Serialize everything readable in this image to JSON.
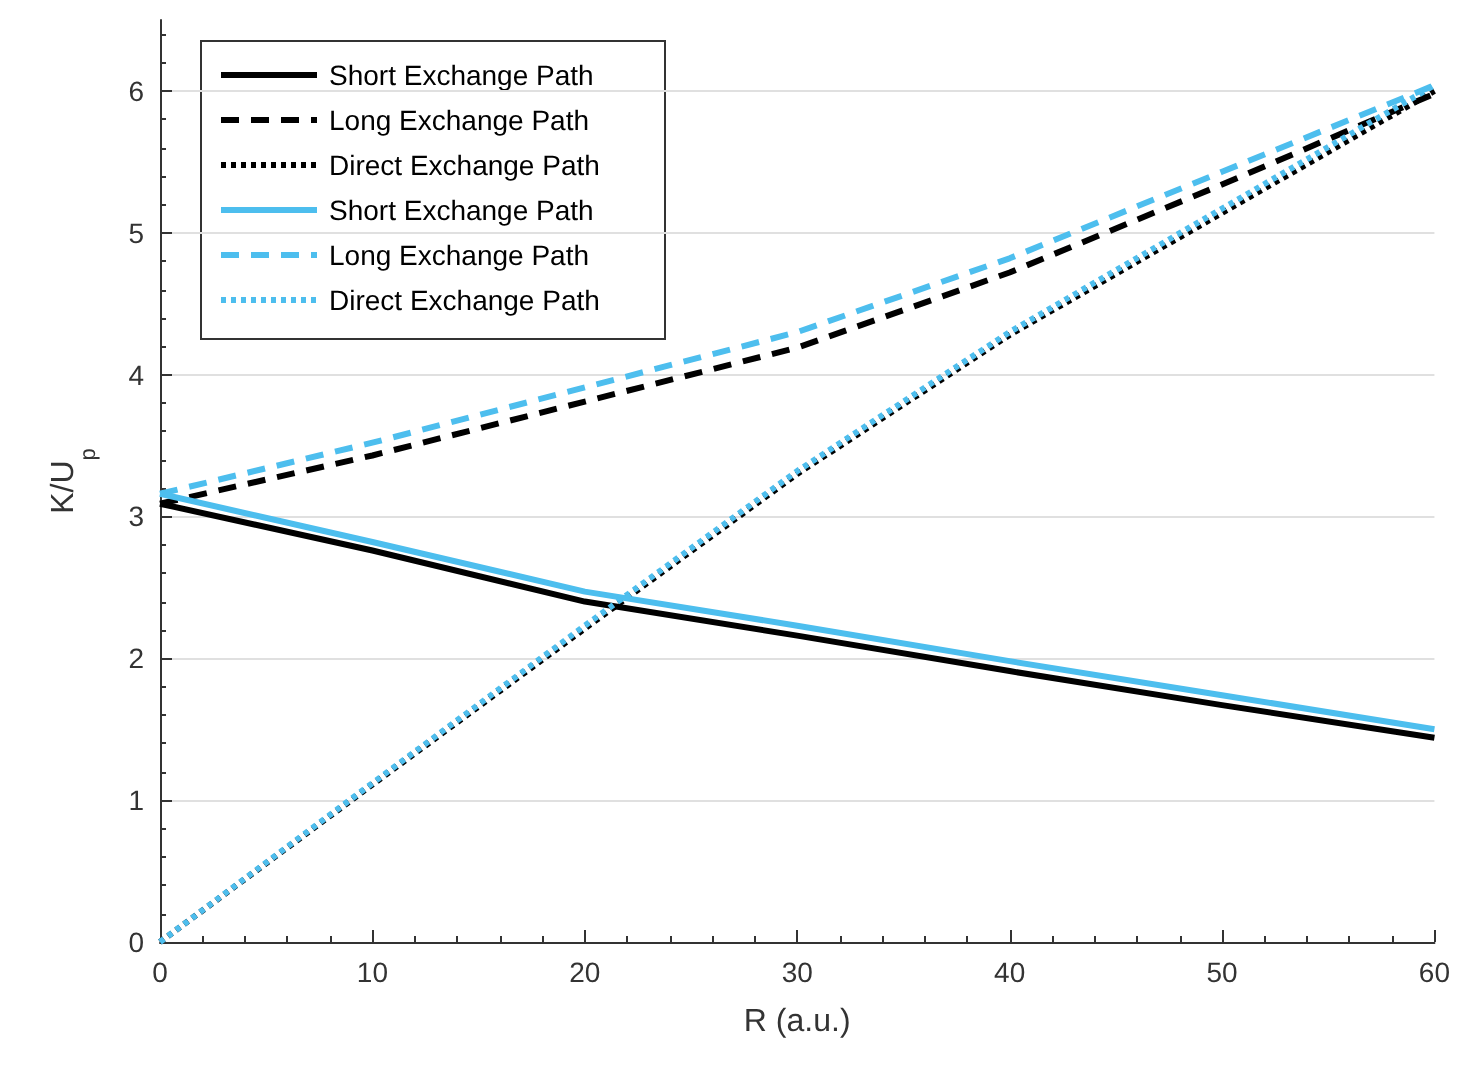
{
  "chart_data": {
    "type": "line",
    "xlabel": "R (a.u.)",
    "ylabel": "K/U$_{p}$",
    "x": [
      0,
      10,
      20,
      30,
      40,
      50,
      60
    ],
    "series": [
      {
        "name": "Short Exchange Path",
        "color": "#000000",
        "line_style": "solid",
        "values": [
          3.09,
          2.76,
          2.4,
          2.16,
          1.91,
          1.67,
          1.44
        ]
      },
      {
        "name": "Long Exchange Path",
        "color": "#000000",
        "line_style": "dashed",
        "values": [
          3.09,
          3.43,
          3.81,
          4.19,
          4.72,
          5.34,
          5.98
        ]
      },
      {
        "name": "Direct Exchange Path",
        "color": "#000000",
        "line_style": "dotted",
        "values": [
          0,
          1.11,
          2.21,
          3.3,
          4.28,
          5.14,
          6.0
        ]
      },
      {
        "name": "Short Exchange Path",
        "color": "#4dbeee",
        "line_style": "solid",
        "values": [
          3.16,
          2.82,
          2.47,
          2.23,
          1.98,
          1.74,
          1.5
        ]
      },
      {
        "name": "Long Exchange Path",
        "color": "#4dbeee",
        "line_style": "dashed",
        "values": [
          3.16,
          3.52,
          3.91,
          4.3,
          4.82,
          5.43,
          6.04
        ]
      },
      {
        "name": "Direct Exchange Path",
        "color": "#4dbeee",
        "line_style": "dotted",
        "values": [
          0,
          1.12,
          2.23,
          3.32,
          4.3,
          5.17,
          6.04
        ]
      }
    ],
    "xlim": [
      0,
      60
    ],
    "xticks": [
      0,
      10,
      20,
      30,
      40,
      50,
      60
    ],
    "ylim": [
      0,
      6.5
    ],
    "yticks": [
      0,
      1,
      2,
      3,
      4,
      5,
      6
    ],
    "grid": "y",
    "legend": "top left",
    "marker": "none"
  }
}
